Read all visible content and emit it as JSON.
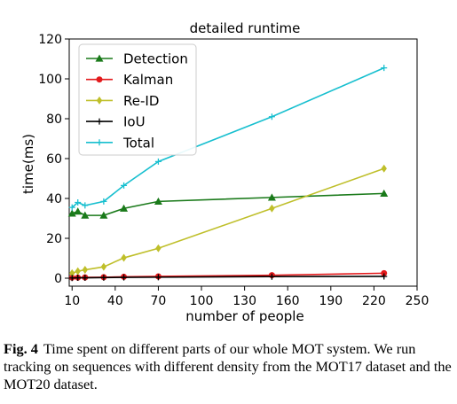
{
  "chart_data": {
    "type": "line",
    "title": "detailed runtime",
    "xlabel": "number of people",
    "ylabel": "time(ms)",
    "x": [
      10,
      14,
      19,
      32,
      46,
      70,
      149,
      227
    ],
    "xticks": [
      10,
      40,
      70,
      100,
      130,
      160,
      190,
      220,
      250
    ],
    "yticks": [
      0,
      20,
      40,
      60,
      80,
      100,
      120
    ],
    "xlim": [
      8,
      250
    ],
    "ylim": [
      -4,
      120
    ],
    "legend_position": "upper-left",
    "series": [
      {
        "name": "Detection",
        "color": "#1a7a1a",
        "marker": "triangle",
        "values": [
          32.5,
          33.5,
          31.5,
          31.5,
          35,
          38.5,
          40.5,
          42.5
        ]
      },
      {
        "name": "Kalman",
        "color": "#e31a1c",
        "marker": "circle",
        "values": [
          0.3,
          0.3,
          0.4,
          0.5,
          0.7,
          0.9,
          1.5,
          2.5
        ]
      },
      {
        "name": "Re-ID",
        "color": "#bfbf2a",
        "marker": "diamond",
        "values": [
          2.5,
          3.5,
          4.2,
          5.7,
          10.2,
          15,
          35,
          55
        ]
      },
      {
        "name": "IoU",
        "color": "#000000",
        "marker": "plus",
        "values": [
          0.1,
          0.2,
          0.2,
          0.3,
          0.4,
          0.5,
          0.8,
          0.9
        ]
      },
      {
        "name": "Total",
        "color": "#17bfcf",
        "marker": "plus",
        "values": [
          35.5,
          38,
          36.5,
          38.5,
          46.5,
          58.5,
          81,
          105.5
        ]
      }
    ]
  },
  "caption": {
    "label": "Fig. 4",
    "text": "Time spent on different parts of our whole MOT system. We run tracking on sequences with different density from the MOT17 dataset and the MOT20 dataset."
  }
}
